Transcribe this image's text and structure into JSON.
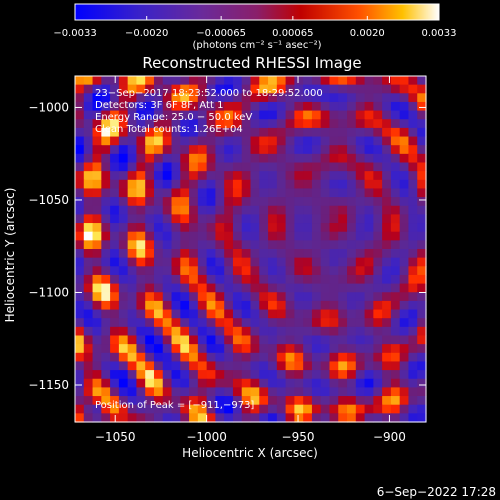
{
  "chart_data": {
    "type": "heatmap",
    "title": "Reconstructed RHESSI Image",
    "xlabel": "Heliocentric X (arcsec)",
    "ylabel": "Heliocentric Y (arcsec)",
    "xlim": [
      -1072,
      -880
    ],
    "ylim": [
      -1170,
      -983
    ],
    "x_ticks": [
      -1050,
      -1000,
      -950,
      -900
    ],
    "x_tick_labels": [
      "−1050",
      "−1000",
      "−950",
      "−900"
    ],
    "y_ticks": [
      -1000,
      -1050,
      -1100,
      -1150
    ],
    "y_tick_labels": [
      "−1000",
      "−1050",
      "−1100",
      "−1150"
    ],
    "colorbar": {
      "min": -0.0033,
      "max": 0.0033,
      "ticks": [
        -0.0033,
        -0.002,
        -0.00065,
        0.00065,
        0.002,
        0.0033
      ],
      "tick_labels": [
        "−0.0033",
        "−0.0020",
        "−0.00065",
        "0.00065",
        "0.0020",
        "0.0033"
      ],
      "units": "(photons cm⁻² s⁻¹ asec⁻²)"
    },
    "annotations": [
      "23−Sep−2017 18:23:52.000 to 18:29:52.000",
      "Detectors: 3F 6F 8F, Att 1",
      "Energy Range: 25.0 − 50.0 keV",
      "Clean    Total counts: 1.26E+04"
    ],
    "peak_label": "Position of Peak = [−911,−973]",
    "peak": [
      -911,
      -973
    ]
  },
  "footer": {
    "date": "6−Sep−2022 17:28"
  },
  "colors": {
    "background": "#000000",
    "foreground": "#ffffff"
  }
}
